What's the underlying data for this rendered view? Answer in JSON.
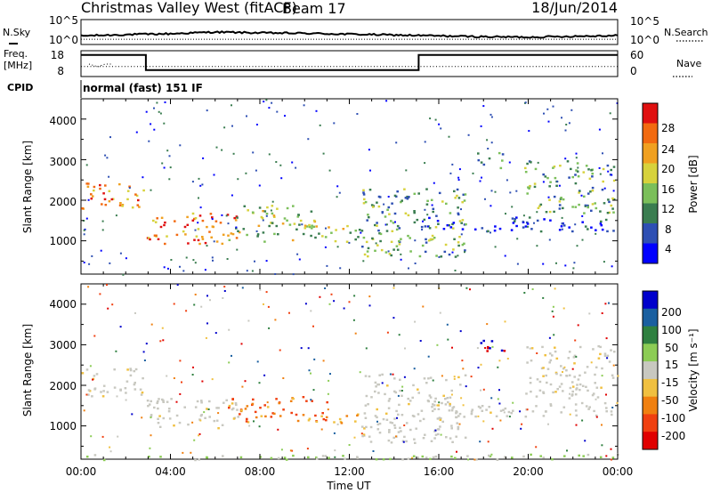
{
  "header": {
    "station": "Christmas Valley West (fitACF)",
    "beam": "Beam 17",
    "date": "18/Jun/2014"
  },
  "top_panels": {
    "nsky_label": "N.Sky",
    "nsky_ticks": [
      "10^5",
      "10^0"
    ],
    "nsearch_label": "N.Search",
    "nsearch_ticks": [
      "10^5",
      "10^0"
    ],
    "freq_label_1": "Freq.",
    "freq_label_2": "[MHz]",
    "freq_ticks": [
      "18",
      "8"
    ],
    "nave_label": "Nave",
    "nave_ticks": [
      "60",
      "0"
    ],
    "cpid_label": "CPID",
    "cpid_value": "normal (fast) 151 IF"
  },
  "colors": {
    "power": [
      "#0000ff",
      "#2e4fb3",
      "#3a7d50",
      "#7bbf5a",
      "#d7d23c",
      "#f0a020",
      "#f26a10",
      "#e01010"
    ],
    "velocity": [
      "#0000cc",
      "#1a5fa0",
      "#2f8040",
      "#8ccc55",
      "#c8c8c0",
      "#f0c040",
      "#f08010",
      "#f04010",
      "#e00000"
    ]
  },
  "chart_data": [
    {
      "type": "line",
      "title": "N.Sky / N.Search",
      "x_hours": [
        0,
        2,
        4,
        6,
        8,
        10,
        12,
        14,
        16,
        18,
        20,
        22,
        24
      ],
      "series": [
        {
          "name": "N.Sky",
          "values": [
            1.6,
            1.9,
            2.1,
            2.5,
            2.3,
            2.2,
            2.0,
            1.8,
            1.6,
            1.4,
            1.3,
            1.5,
            1.7
          ]
        }
      ],
      "ylim": [
        0,
        5
      ],
      "yscale": "log"
    },
    {
      "type": "line",
      "title": "Freq / Nave",
      "x_hours": [
        0,
        2.9,
        2.9,
        15.1,
        15.1,
        24
      ],
      "series": [
        {
          "name": "Freq.",
          "values": [
            16.6,
            16.6,
            10.3,
            10.3,
            16.6,
            16.6
          ]
        },
        {
          "name": "Nave",
          "values": [
            23,
            23,
            23,
            23,
            23,
            23
          ]
        }
      ],
      "freq_ylim": [
        8,
        18
      ],
      "nave_ylim": [
        0,
        60
      ]
    },
    {
      "type": "heatmap",
      "ylabel": "Slant Range [km]",
      "xlabel": "Time UT",
      "x_ticks": [
        "00:00",
        "04:00",
        "08:00",
        "12:00",
        "16:00",
        "20:00",
        "00:00"
      ],
      "y_ticks": [
        "1000",
        "2000",
        "3000",
        "4000"
      ],
      "xlim_hours": [
        0,
        24
      ],
      "ylim_km": [
        180,
        4500
      ],
      "colorbar_label": "Power [dB]",
      "colorbar_ticks": [
        "4",
        "8",
        "12",
        "16",
        "20",
        "24",
        "28"
      ],
      "colorbar_range": [
        0,
        32
      ],
      "features": [
        {
          "t0": 0.0,
          "t1": 2.8,
          "r0": 1750,
          "r1": 2450,
          "level": 28
        },
        {
          "t0": 2.9,
          "t1": 7.0,
          "r0": 950,
          "r1": 1700,
          "level": 26
        },
        {
          "t0": 6.5,
          "t1": 10.5,
          "r0": 1000,
          "r1": 1900,
          "level": 20
        },
        {
          "t0": 10.5,
          "t1": 12.5,
          "r0": 1000,
          "r1": 1400,
          "level": 18
        },
        {
          "t0": 12.5,
          "t1": 17.2,
          "r0": 600,
          "r1": 2300,
          "level": 14
        },
        {
          "t0": 15.5,
          "t1": 23.8,
          "r0": 1250,
          "r1": 1600,
          "level": 6
        },
        {
          "t0": 19.8,
          "t1": 23.8,
          "r0": 1700,
          "r1": 3000,
          "level": 14
        },
        {
          "t0": 17.7,
          "t1": 19.0,
          "r0": 2800,
          "r1": 3200,
          "level": 12
        }
      ]
    },
    {
      "type": "heatmap",
      "ylabel": "Slant Range [km]",
      "xlabel": "Time UT",
      "x_ticks": [
        "00:00",
        "04:00",
        "08:00",
        "12:00",
        "16:00",
        "20:00",
        "00:00"
      ],
      "y_ticks": [
        "1000",
        "2000",
        "3000",
        "4000"
      ],
      "xlim_hours": [
        0,
        24
      ],
      "ylim_km": [
        180,
        4500
      ],
      "colorbar_label": "Velocity [m s⁻¹]",
      "colorbar_ticks": [
        "200",
        "100",
        "50",
        "15",
        "-15",
        "-50",
        "-100",
        "-200"
      ],
      "colorbar_range": [
        -250,
        250
      ],
      "features": [
        {
          "t0": 0.0,
          "t1": 2.8,
          "r0": 1750,
          "r1": 2450,
          "velocity": 0
        },
        {
          "t0": 2.9,
          "t1": 7.0,
          "r0": 950,
          "r1": 1700,
          "velocity": 0
        },
        {
          "t0": 6.5,
          "t1": 11.0,
          "r0": 1100,
          "r1": 1750,
          "velocity": -120
        },
        {
          "t0": 11.0,
          "t1": 12.5,
          "r0": 1050,
          "r1": 1350,
          "velocity": -60
        },
        {
          "t0": 12.5,
          "t1": 17.2,
          "r0": 600,
          "r1": 2300,
          "velocity": 0
        },
        {
          "t0": 15.5,
          "t1": 23.8,
          "r0": 1250,
          "r1": 1600,
          "velocity": 0
        },
        {
          "t0": 19.8,
          "t1": 23.8,
          "r0": 1700,
          "r1": 3000,
          "velocity": 0
        },
        {
          "t0": 17.7,
          "t1": 19.0,
          "r0": 2800,
          "r1": 3200,
          "velocity": 180
        },
        {
          "t0": 0.0,
          "t1": 24.0,
          "r0": 180,
          "r1": 320,
          "velocity": 60
        }
      ]
    }
  ]
}
